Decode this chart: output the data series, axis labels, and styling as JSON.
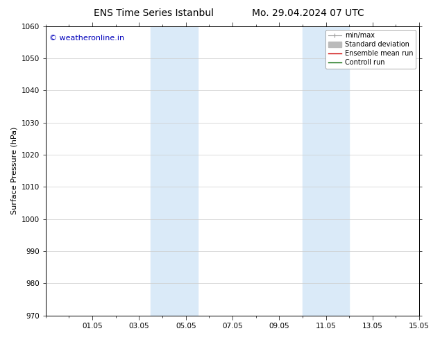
{
  "title_left": "ENS Time Series Istanbul",
  "title_right": "Mo. 29.04.2024 07 UTC",
  "ylabel": "Surface Pressure (hPa)",
  "ylim": [
    970,
    1060
  ],
  "yticks": [
    970,
    980,
    990,
    1000,
    1010,
    1020,
    1030,
    1040,
    1050,
    1060
  ],
  "xlim": [
    0,
    16
  ],
  "xtick_labels": [
    "01.05",
    "03.05",
    "05.05",
    "07.05",
    "09.05",
    "11.05",
    "13.05",
    "15.05"
  ],
  "xtick_positions": [
    2,
    4,
    6,
    8,
    10,
    12,
    14,
    16
  ],
  "shaded_bands": [
    {
      "x_start": 4.5,
      "x_end": 6.5,
      "color": "#daeaf8"
    },
    {
      "x_start": 11.0,
      "x_end": 13.0,
      "color": "#daeaf8"
    }
  ],
  "watermark_text": "© weatheronline.in",
  "watermark_color": "#0000bb",
  "watermark_fontsize": 8,
  "legend_entries": [
    {
      "label": "min/max",
      "color": "#999999"
    },
    {
      "label": "Standard deviation",
      "color": "#bbbbbb"
    },
    {
      "label": "Ensemble mean run",
      "color": "#cc0000"
    },
    {
      "label": "Controll run",
      "color": "#006600"
    }
  ],
  "bg_color": "#ffffff",
  "grid_color": "#cccccc",
  "title_fontsize": 10,
  "axis_label_fontsize": 8,
  "tick_fontsize": 7.5,
  "legend_fontsize": 7
}
